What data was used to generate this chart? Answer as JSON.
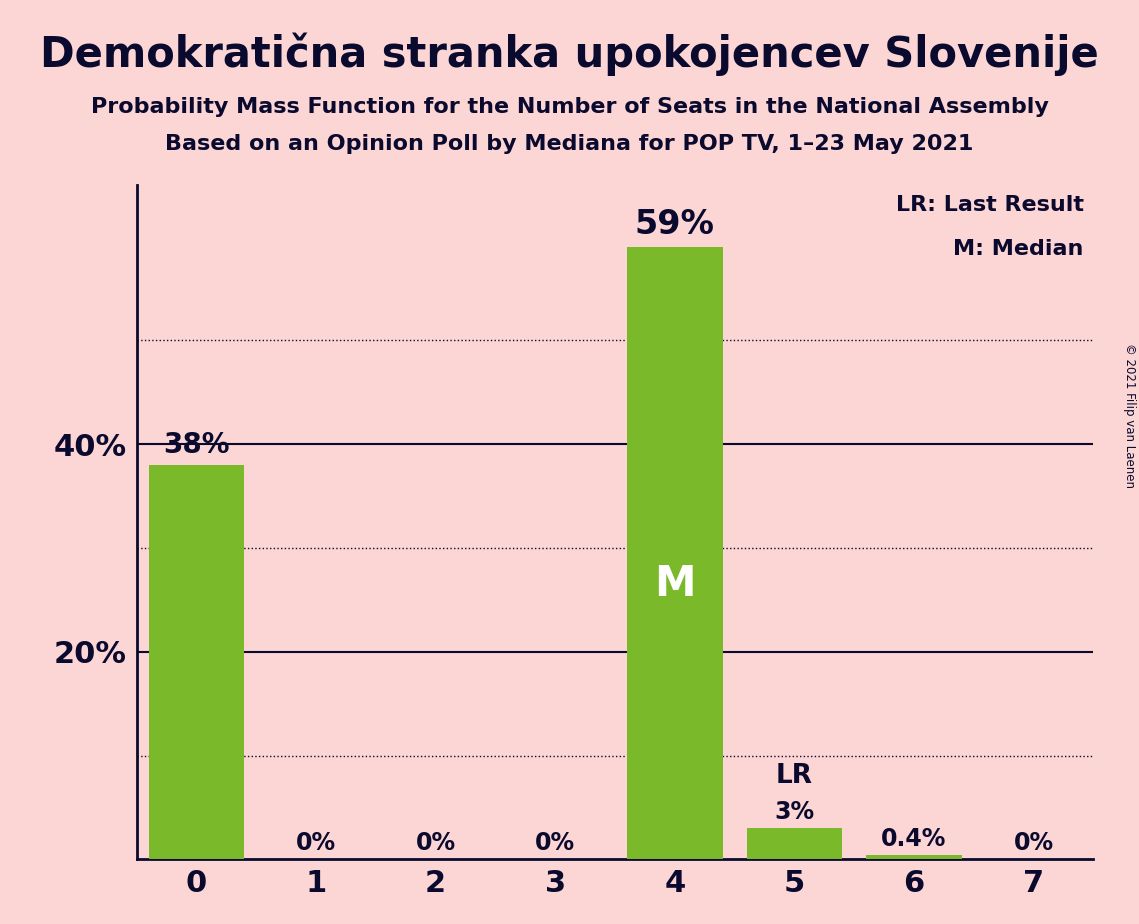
{
  "title": "Demokratična stranka upokojencev Slovenije",
  "subtitle1": "Probability Mass Function for the Number of Seats in the National Assembly",
  "subtitle2": "Based on an Opinion Poll by Mediana for POP TV, 1–23 May 2021",
  "copyright": "© 2021 Filip van Laenen",
  "categories": [
    0,
    1,
    2,
    3,
    4,
    5,
    6,
    7
  ],
  "values": [
    0.38,
    0.0,
    0.0,
    0.0,
    0.59,
    0.03,
    0.004,
    0.0
  ],
  "labels": [
    "38%",
    "0%",
    "0%",
    "0%",
    "59%",
    "3%",
    "0.4%",
    "0%"
  ],
  "bar_color": "#7aba2a",
  "median_bar": 4,
  "last_result_bar": 5,
  "background_color": "#fcd5d5",
  "title_color": "#0a0a2e",
  "bar_label_color_dark": "#0a0a2e",
  "median_label_color": "#ffffff",
  "solid_grid_levels": [
    0.2,
    0.4
  ],
  "dotted_grid_levels": [
    0.1,
    0.3,
    0.5
  ],
  "axis_color": "#0a0a2e",
  "ylim": [
    0,
    0.65
  ],
  "xlim": [
    -0.5,
    7.5
  ],
  "legend_text_line1": "LR: Last Result",
  "legend_text_line2": "M: Median"
}
